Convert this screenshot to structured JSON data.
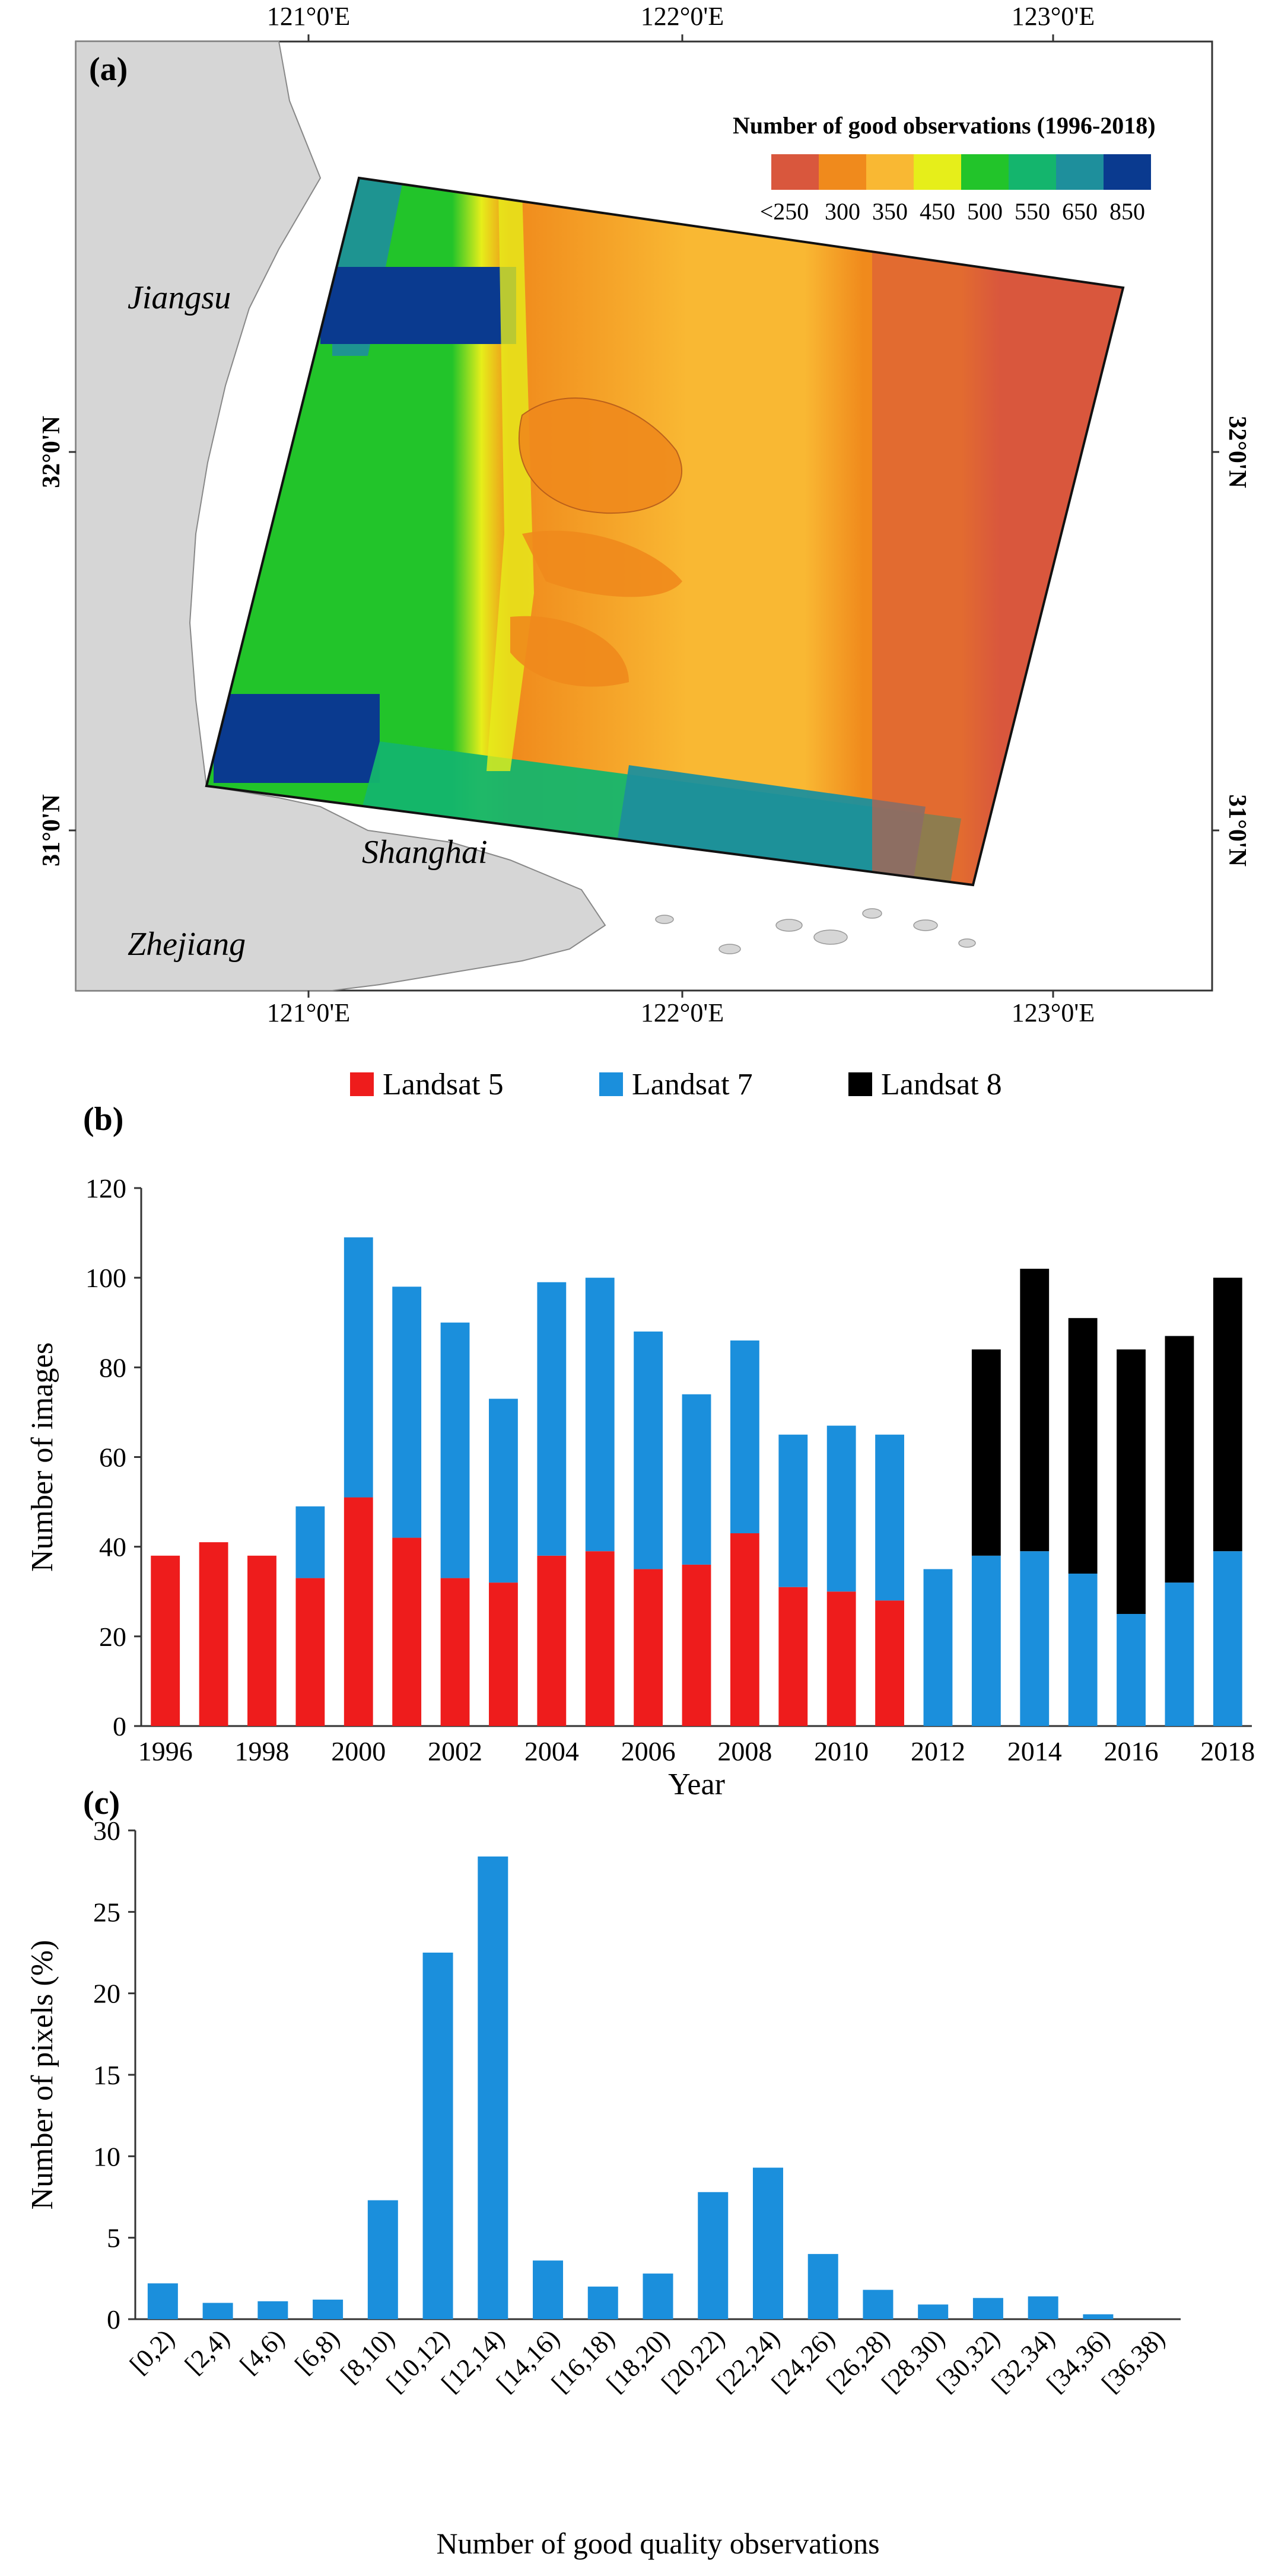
{
  "panel_a": {
    "label": "(a)",
    "legend_title": "Number of good observations (1996-2018)",
    "legend_colors": [
      "#d9573d",
      "#f08a1c",
      "#f9b833",
      "#e6ee1a",
      "#22c42a",
      "#14b56d",
      "#1e8f9c",
      "#0a3a8f"
    ],
    "legend_labels": [
      "<250",
      "300",
      "350",
      "450",
      "500",
      "550",
      "650",
      "850"
    ],
    "top_ticks": [
      "121°0'E",
      "122°0'E",
      "123°0'E"
    ],
    "bottom_ticks": [
      "121°0'E",
      "122°0'E",
      "123°0'E"
    ],
    "left_ticks": [
      "32°0'N",
      "31°0'N"
    ],
    "right_ticks": [
      "32°0'N",
      "31°0'N"
    ],
    "regions": {
      "jiangsu": "Jiangsu",
      "shanghai": "Shanghai",
      "zhejiang": "Zhejiang"
    }
  },
  "chart_data": [
    {
      "panel": "(b)",
      "type": "bar",
      "stacked": true,
      "categories": [
        "1996",
        "1997",
        "1998",
        "1999",
        "2000",
        "2001",
        "2002",
        "2003",
        "2004",
        "2005",
        "2006",
        "2007",
        "2008",
        "2009",
        "2010",
        "2011",
        "2012",
        "2013",
        "2014",
        "2015",
        "2016",
        "2017",
        "2018"
      ],
      "x_tick_labels": [
        "1996",
        "1998",
        "2000",
        "2002",
        "2004",
        "2006",
        "2008",
        "2010",
        "2012",
        "2014",
        "2016",
        "2018"
      ],
      "series": [
        {
          "name": "Landsat 5",
          "color": "#ee1c1c",
          "values": [
            38,
            41,
            38,
            33,
            51,
            42,
            33,
            32,
            38,
            39,
            35,
            36,
            43,
            31,
            30,
            28,
            0,
            0,
            0,
            0,
            0,
            0,
            0
          ]
        },
        {
          "name": "Landsat 7",
          "color": "#1b8fdc",
          "values": [
            0,
            0,
            0,
            16,
            58,
            56,
            57,
            41,
            61,
            61,
            53,
            38,
            43,
            34,
            37,
            37,
            35,
            38,
            39,
            34,
            25,
            32,
            39
          ]
        },
        {
          "name": "Landsat 8",
          "color": "#000000",
          "values": [
            0,
            0,
            0,
            0,
            0,
            0,
            0,
            0,
            0,
            0,
            0,
            0,
            0,
            0,
            0,
            0,
            0,
            46,
            63,
            57,
            59,
            55,
            61
          ]
        }
      ],
      "xlabel": "Year",
      "ylabel": "Number of images",
      "ylim": [
        0,
        120
      ],
      "yticks": [
        "0",
        "20",
        "40",
        "60",
        "80",
        "100",
        "120"
      ]
    },
    {
      "panel": "(c)",
      "type": "bar",
      "categories": [
        "[0,2)",
        "[2,4)",
        "[4,6)",
        "[6,8)",
        "[8,10)",
        "[10,12)",
        "[12,14)",
        "[14,16)",
        "[16,18)",
        "[18,20)",
        "[20,22)",
        "[22,24)",
        "[24,26)",
        "[26,28)",
        "[28,30)",
        "[30,32)",
        "[32,34)",
        "[34,36)",
        "[36,38)"
      ],
      "values": [
        2.2,
        1.0,
        1.1,
        1.2,
        7.3,
        22.5,
        28.4,
        3.6,
        2.0,
        2.8,
        7.8,
        9.3,
        4.0,
        1.8,
        0.9,
        1.3,
        1.4,
        0.3,
        0
      ],
      "color": "#1b8fdc",
      "xlabel": "Number of good quality observations",
      "ylabel": "Number of pixels (%)",
      "ylim": [
        0,
        30
      ],
      "yticks": [
        "0",
        "5",
        "10",
        "15",
        "20",
        "25",
        "30"
      ]
    }
  ]
}
